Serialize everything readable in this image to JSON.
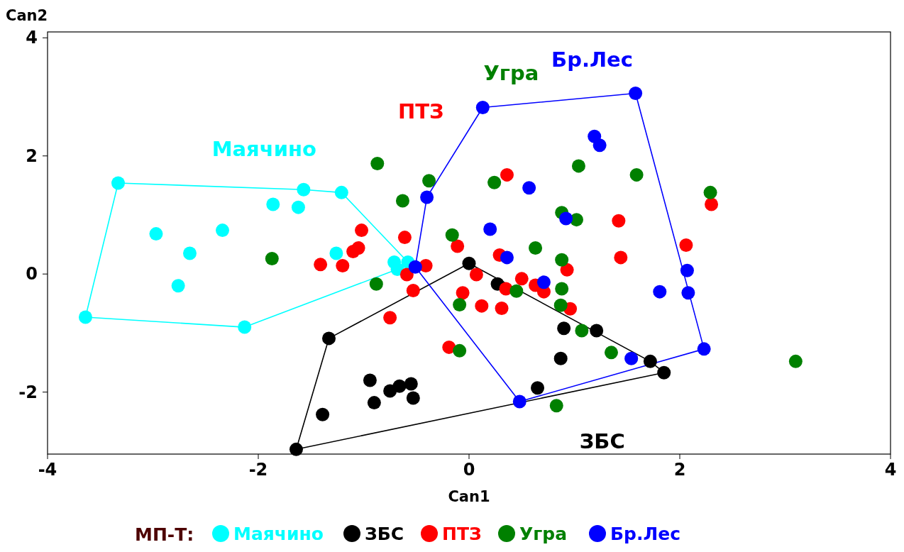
{
  "chart_data": {
    "type": "scatter",
    "xlabel": "Can1",
    "ylabel": "Can2",
    "legend_title": "МП-Т:",
    "legend": "bottom",
    "marker": "circle",
    "grid": false,
    "xlim": [
      -4,
      4
    ],
    "ylim": [
      -3.05,
      4.1
    ],
    "xticks": [
      -4,
      -2,
      0,
      2,
      4
    ],
    "yticks": [
      -2,
      0,
      2,
      4
    ],
    "series": [
      {
        "name": "Маячино",
        "color": "#00ffff",
        "x": [
          -3.33,
          -2.97,
          -2.65,
          -2.76,
          -2.34,
          -1.86,
          -1.62,
          -1.57,
          -1.21,
          -1.26,
          -3.64,
          -2.13,
          -0.71,
          -0.68,
          -0.58
        ],
        "values": [
          1.54,
          0.68,
          0.35,
          -0.2,
          0.74,
          1.18,
          1.13,
          1.43,
          1.38,
          0.35,
          -0.73,
          -0.9,
          0.2,
          0.08,
          0.2
        ]
      },
      {
        "name": "ЗБС",
        "color": "#000000",
        "x": [
          0,
          0.27,
          -1.33,
          -1.39,
          -1.64,
          -0.94,
          -0.9,
          -0.75,
          -0.66,
          -0.55,
          -0.53,
          0.9,
          1.21,
          0.87,
          0.65,
          1.72,
          1.85
        ],
        "values": [
          0.18,
          -0.17,
          -1.09,
          -2.38,
          -2.97,
          -1.8,
          -2.18,
          -1.98,
          -1.9,
          -1.86,
          -2.1,
          -0.92,
          -0.96,
          -1.43,
          -1.93,
          -1.48,
          -1.67
        ]
      },
      {
        "name": "ПТЗ",
        "color": "#ff0000",
        "x": [
          -1.02,
          -1.1,
          -1.05,
          -0.61,
          -1.41,
          -1.2,
          -0.41,
          -0.59,
          -0.53,
          -0.75,
          -0.19,
          -0.06,
          0.36,
          -0.11,
          1.42,
          2.06,
          2.3,
          0.29,
          1.44,
          0.07,
          0.5,
          0.63,
          0.71,
          0.35,
          0.93,
          0.12,
          0.31,
          0.96
        ],
        "values": [
          0.74,
          0.38,
          0.44,
          0.62,
          0.16,
          0.14,
          0.14,
          -0.01,
          -0.28,
          -0.74,
          -1.24,
          -0.32,
          1.68,
          0.47,
          0.9,
          0.49,
          1.18,
          0.32,
          0.28,
          -0.01,
          -0.08,
          -0.19,
          -0.3,
          -0.25,
          0.07,
          -0.54,
          -0.58,
          -0.59
        ]
      },
      {
        "name": "Угра",
        "color": "#008000",
        "x": [
          -0.87,
          -0.38,
          -0.63,
          -0.16,
          -1.87,
          -0.88,
          -0.09,
          -0.09,
          0.24,
          1.04,
          1.59,
          2.29,
          0.88,
          1.02,
          0.63,
          0.88,
          0.45,
          0.88,
          0.87,
          1.07,
          1.35,
          0.83,
          3.1
        ],
        "values": [
          1.87,
          1.58,
          1.24,
          0.66,
          0.26,
          -0.17,
          -0.52,
          -1.3,
          1.55,
          1.83,
          1.68,
          1.38,
          1.04,
          0.92,
          0.44,
          0.24,
          -0.29,
          -0.25,
          -0.53,
          -0.96,
          -1.33,
          -2.23,
          -1.48
        ]
      },
      {
        "name": "Бр.Лес",
        "color": "#0000ff",
        "x": [
          0.13,
          1.58,
          1.19,
          1.24,
          -0.4,
          0.57,
          0.2,
          0.92,
          0.36,
          -0.51,
          0.71,
          2.07,
          2.08,
          1.81,
          2.23,
          1.54,
          0.48
        ],
        "values": [
          2.82,
          3.06,
          2.33,
          2.18,
          1.3,
          1.46,
          0.76,
          0.94,
          0.28,
          0.12,
          -0.14,
          0.06,
          -0.32,
          -0.3,
          -1.27,
          -1.43,
          -2.16
        ]
      },
      {
        "type": "line",
        "marker": "none",
        "color": "#00ffff",
        "x": [
          -3.64,
          -3.33,
          -1.57,
          -1.21,
          -0.58
        ],
        "values": [
          -0.73,
          1.54,
          1.43,
          1.38,
          0.2
        ]
      },
      {
        "type": "line",
        "marker": "none",
        "color": "#00ffff",
        "x": [
          -3.64,
          -2.13,
          -0.68,
          -0.58
        ],
        "values": [
          -0.73,
          -0.9,
          0.08,
          0.2
        ]
      },
      {
        "type": "line",
        "marker": "none",
        "color": "#000000",
        "x": [
          -1.64,
          -1.33,
          0,
          1.72,
          1.85
        ],
        "values": [
          -2.97,
          -1.09,
          0.18,
          -1.48,
          -1.67
        ]
      },
      {
        "type": "line",
        "marker": "none",
        "color": "#000000",
        "x": [
          -1.64,
          1.85
        ],
        "values": [
          -2.97,
          -1.67
        ]
      },
      {
        "type": "line",
        "marker": "none",
        "color": "#0000ff",
        "x": [
          -0.51,
          -0.4,
          0.13,
          1.58,
          2.23
        ],
        "values": [
          0.12,
          1.3,
          2.82,
          3.06,
          -1.27
        ]
      },
      {
        "type": "line",
        "marker": "none",
        "color": "#0000ff",
        "x": [
          -0.51,
          0.48,
          2.23
        ],
        "values": [
          0.12,
          -2.16,
          -1.27
        ]
      }
    ],
    "annotations": [
      "Маячино",
      "ЗБС",
      "ПТЗ",
      "Угра",
      "Бр.Лес"
    ]
  }
}
